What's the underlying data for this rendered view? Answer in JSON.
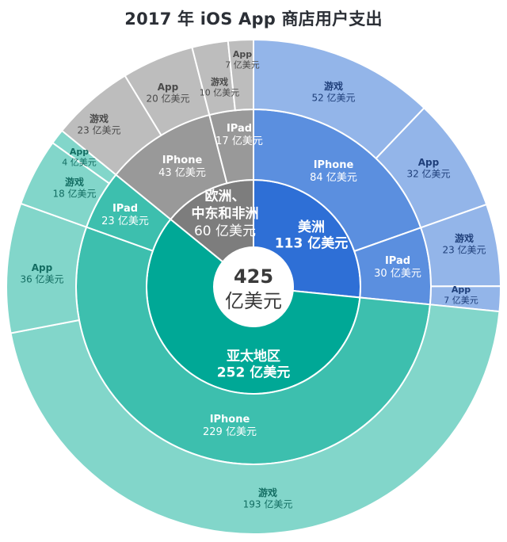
{
  "title": "2017 年 iOS App 商店用户支出",
  "center": {
    "value": "425",
    "unit": "亿美元"
  },
  "unit_suffix": "亿美元",
  "colors": {
    "americas": {
      "inner": "#2e6fd6",
      "middle": "#5b8fdf",
      "outer": "#93b5e9",
      "text_outer": "#1f3f7a"
    },
    "apac": {
      "inner": "#00a896",
      "middle": "#3dbfae",
      "outer": "#82d6ca",
      "text_outer": "#136d62"
    },
    "emea": {
      "inner": "#7d7d7d",
      "middle": "#999999",
      "outer": "#bdbdbd",
      "text_outer": "#4a4a4a"
    }
  },
  "chart_data": {
    "type": "sunburst",
    "title": "2017 年 iOS App 商店用户支出",
    "unit": "亿美元",
    "total": 425,
    "regions": [
      {
        "key": "americas",
        "name": "美洲",
        "value": 113,
        "devices": [
          {
            "name": "IPhone",
            "value": 84,
            "categories": [
              {
                "name": "游戏",
                "value": 52
              },
              {
                "name": "App",
                "value": 32
              }
            ]
          },
          {
            "name": "IPad",
            "value": 30,
            "categories": [
              {
                "name": "游戏",
                "value": 23
              },
              {
                "name": "App",
                "value": 7
              }
            ]
          }
        ]
      },
      {
        "key": "apac",
        "name": "亚太地区",
        "value": 252,
        "devices": [
          {
            "name": "IPhone",
            "value": 229,
            "categories": [
              {
                "name": "游戏",
                "value": 193
              },
              {
                "name": "App",
                "value": 36
              }
            ]
          },
          {
            "name": "IPad",
            "value": 23,
            "categories": [
              {
                "name": "游戏",
                "value": 18
              },
              {
                "name": "App",
                "value": 4
              }
            ]
          }
        ]
      },
      {
        "key": "emea",
        "name": "欧洲、中东和非洲",
        "name_lines": [
          "欧洲、",
          "中东和非洲"
        ],
        "value": 60,
        "devices": [
          {
            "name": "IPhone",
            "value": 43,
            "categories": [
              {
                "name": "游戏",
                "value": 23
              },
              {
                "name": "App",
                "value": 20
              }
            ]
          },
          {
            "name": "IPad",
            "value": 17,
            "categories": [
              {
                "name": "游戏",
                "value": 10
              },
              {
                "name": "App",
                "value": 7
              }
            ]
          }
        ]
      }
    ]
  }
}
